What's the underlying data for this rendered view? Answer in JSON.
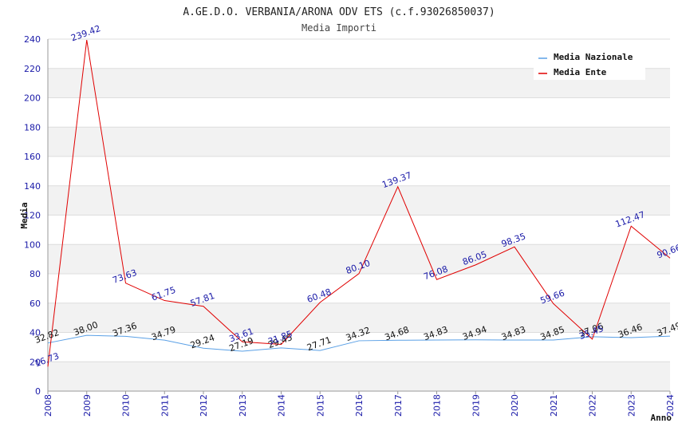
{
  "chart_data": {
    "type": "line",
    "title": "A.GE.D.O. VERBANIA/ARONA ODV ETS (c.f.93026850037)",
    "subtitle": "Media Importi",
    "xlabel": "Anno",
    "ylabel": "Media",
    "ylim": [
      0,
      240
    ],
    "yticks": [
      0,
      20,
      40,
      60,
      80,
      100,
      120,
      140,
      160,
      180,
      200,
      220,
      240
    ],
    "x": [
      "2008",
      "2009",
      "2010",
      "2011",
      "2012",
      "2013",
      "2014",
      "2015",
      "2016",
      "2017",
      "2018",
      "2019",
      "2020",
      "2021",
      "2022",
      "2023",
      "2024"
    ],
    "series": [
      {
        "name": "Media Nazionale",
        "color": "#5aa0e6",
        "values": [
          32.82,
          38.0,
          37.36,
          34.79,
          29.24,
          27.19,
          29.45,
          27.71,
          34.32,
          34.68,
          34.83,
          34.94,
          34.83,
          34.85,
          37.06,
          36.46,
          37.49
        ],
        "labels": [
          "32.82",
          "38.00",
          "37.36",
          "34.79",
          "29.24",
          "27.19",
          "29.45",
          "27.71",
          "34.32",
          "34.68",
          "34.83",
          "34.94",
          "34.83",
          "34.85",
          "37.06",
          "36.46",
          "37.49"
        ]
      },
      {
        "name": "Media Ente",
        "color": "#e00000",
        "values": [
          16.73,
          239.42,
          73.63,
          61.75,
          57.81,
          33.61,
          31.85,
          60.48,
          80.1,
          139.37,
          76.08,
          86.05,
          98.35,
          59.66,
          35.45,
          112.47,
          90.66
        ],
        "labels": [
          "16.73",
          "239.42",
          "73.63",
          "61.75",
          "57.81",
          "33.61",
          "31.85",
          "60.48",
          "80.10",
          "139.37",
          "76.08",
          "86.05",
          "98.35",
          "59.66",
          "35.45",
          "112.47",
          "90.66"
        ]
      }
    ],
    "grid": true,
    "legend": "top-right"
  }
}
